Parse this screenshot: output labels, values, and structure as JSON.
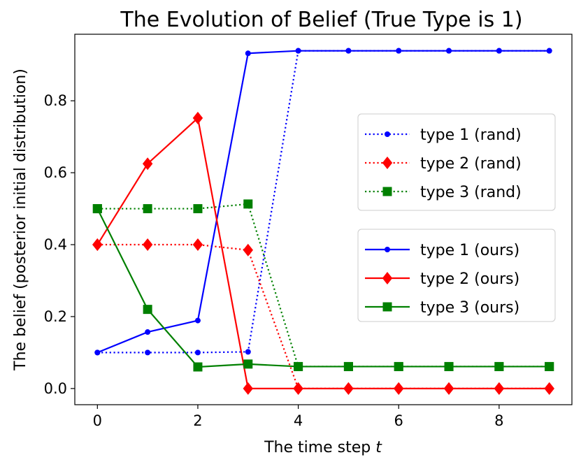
{
  "chart_data": {
    "type": "line",
    "title": "The Evolution of Belief (True Type is 1)",
    "xlabel": "The time step",
    "xlabel_var": "t",
    "ylabel": "The belief (posterior initial distribution)",
    "xlim": [
      -0.45,
      9.45
    ],
    "ylim": [
      -0.045,
      0.985
    ],
    "x_ticks": [
      0,
      2,
      4,
      6,
      8
    ],
    "y_ticks": [
      0.0,
      0.2,
      0.4,
      0.6,
      0.8
    ],
    "x_tick_labels": [
      "0",
      "2",
      "4",
      "6",
      "8"
    ],
    "y_tick_labels": [
      "0.0",
      "0.2",
      "0.4",
      "0.6",
      "0.8"
    ],
    "grid": false,
    "x": [
      0,
      1,
      2,
      3,
      4,
      5,
      6,
      7,
      8,
      9
    ],
    "series": [
      {
        "name": "type 1 (rand)",
        "color": "#0000ff",
        "dash": "dotted",
        "marker": "dot",
        "values": [
          0.1,
          0.1,
          0.1,
          0.102,
          0.939,
          0.939,
          0.939,
          0.939,
          0.939,
          0.939
        ]
      },
      {
        "name": "type 2 (rand)",
        "color": "#ff0000",
        "dash": "dotted",
        "marker": "diamond",
        "values": [
          0.4,
          0.4,
          0.4,
          0.385,
          0.0,
          0.0,
          0.0,
          0.0,
          0.0,
          0.0
        ]
      },
      {
        "name": "type 3 (rand)",
        "color": "#008000",
        "dash": "dotted",
        "marker": "square",
        "values": [
          0.5,
          0.5,
          0.5,
          0.513,
          0.061,
          0.061,
          0.061,
          0.061,
          0.061,
          0.061
        ]
      },
      {
        "name": "type 1 (ours)",
        "color": "#0000ff",
        "dash": "solid",
        "marker": "dot",
        "values": [
          0.1,
          0.157,
          0.189,
          0.932,
          0.939,
          0.939,
          0.939,
          0.939,
          0.939,
          0.939
        ]
      },
      {
        "name": "type 2 (ours)",
        "color": "#ff0000",
        "dash": "solid",
        "marker": "diamond",
        "values": [
          0.4,
          0.625,
          0.752,
          0.0,
          0.0,
          0.0,
          0.0,
          0.0,
          0.0,
          0.0
        ]
      },
      {
        "name": "type 3 (ours)",
        "color": "#008000",
        "dash": "solid",
        "marker": "square",
        "values": [
          0.5,
          0.22,
          0.06,
          0.068,
          0.061,
          0.061,
          0.061,
          0.061,
          0.061,
          0.061
        ]
      }
    ],
    "legends": [
      {
        "placement": "center-right",
        "entries": [
          0,
          1,
          2
        ]
      },
      {
        "placement": "right",
        "entries": [
          3,
          4,
          5
        ]
      }
    ]
  }
}
